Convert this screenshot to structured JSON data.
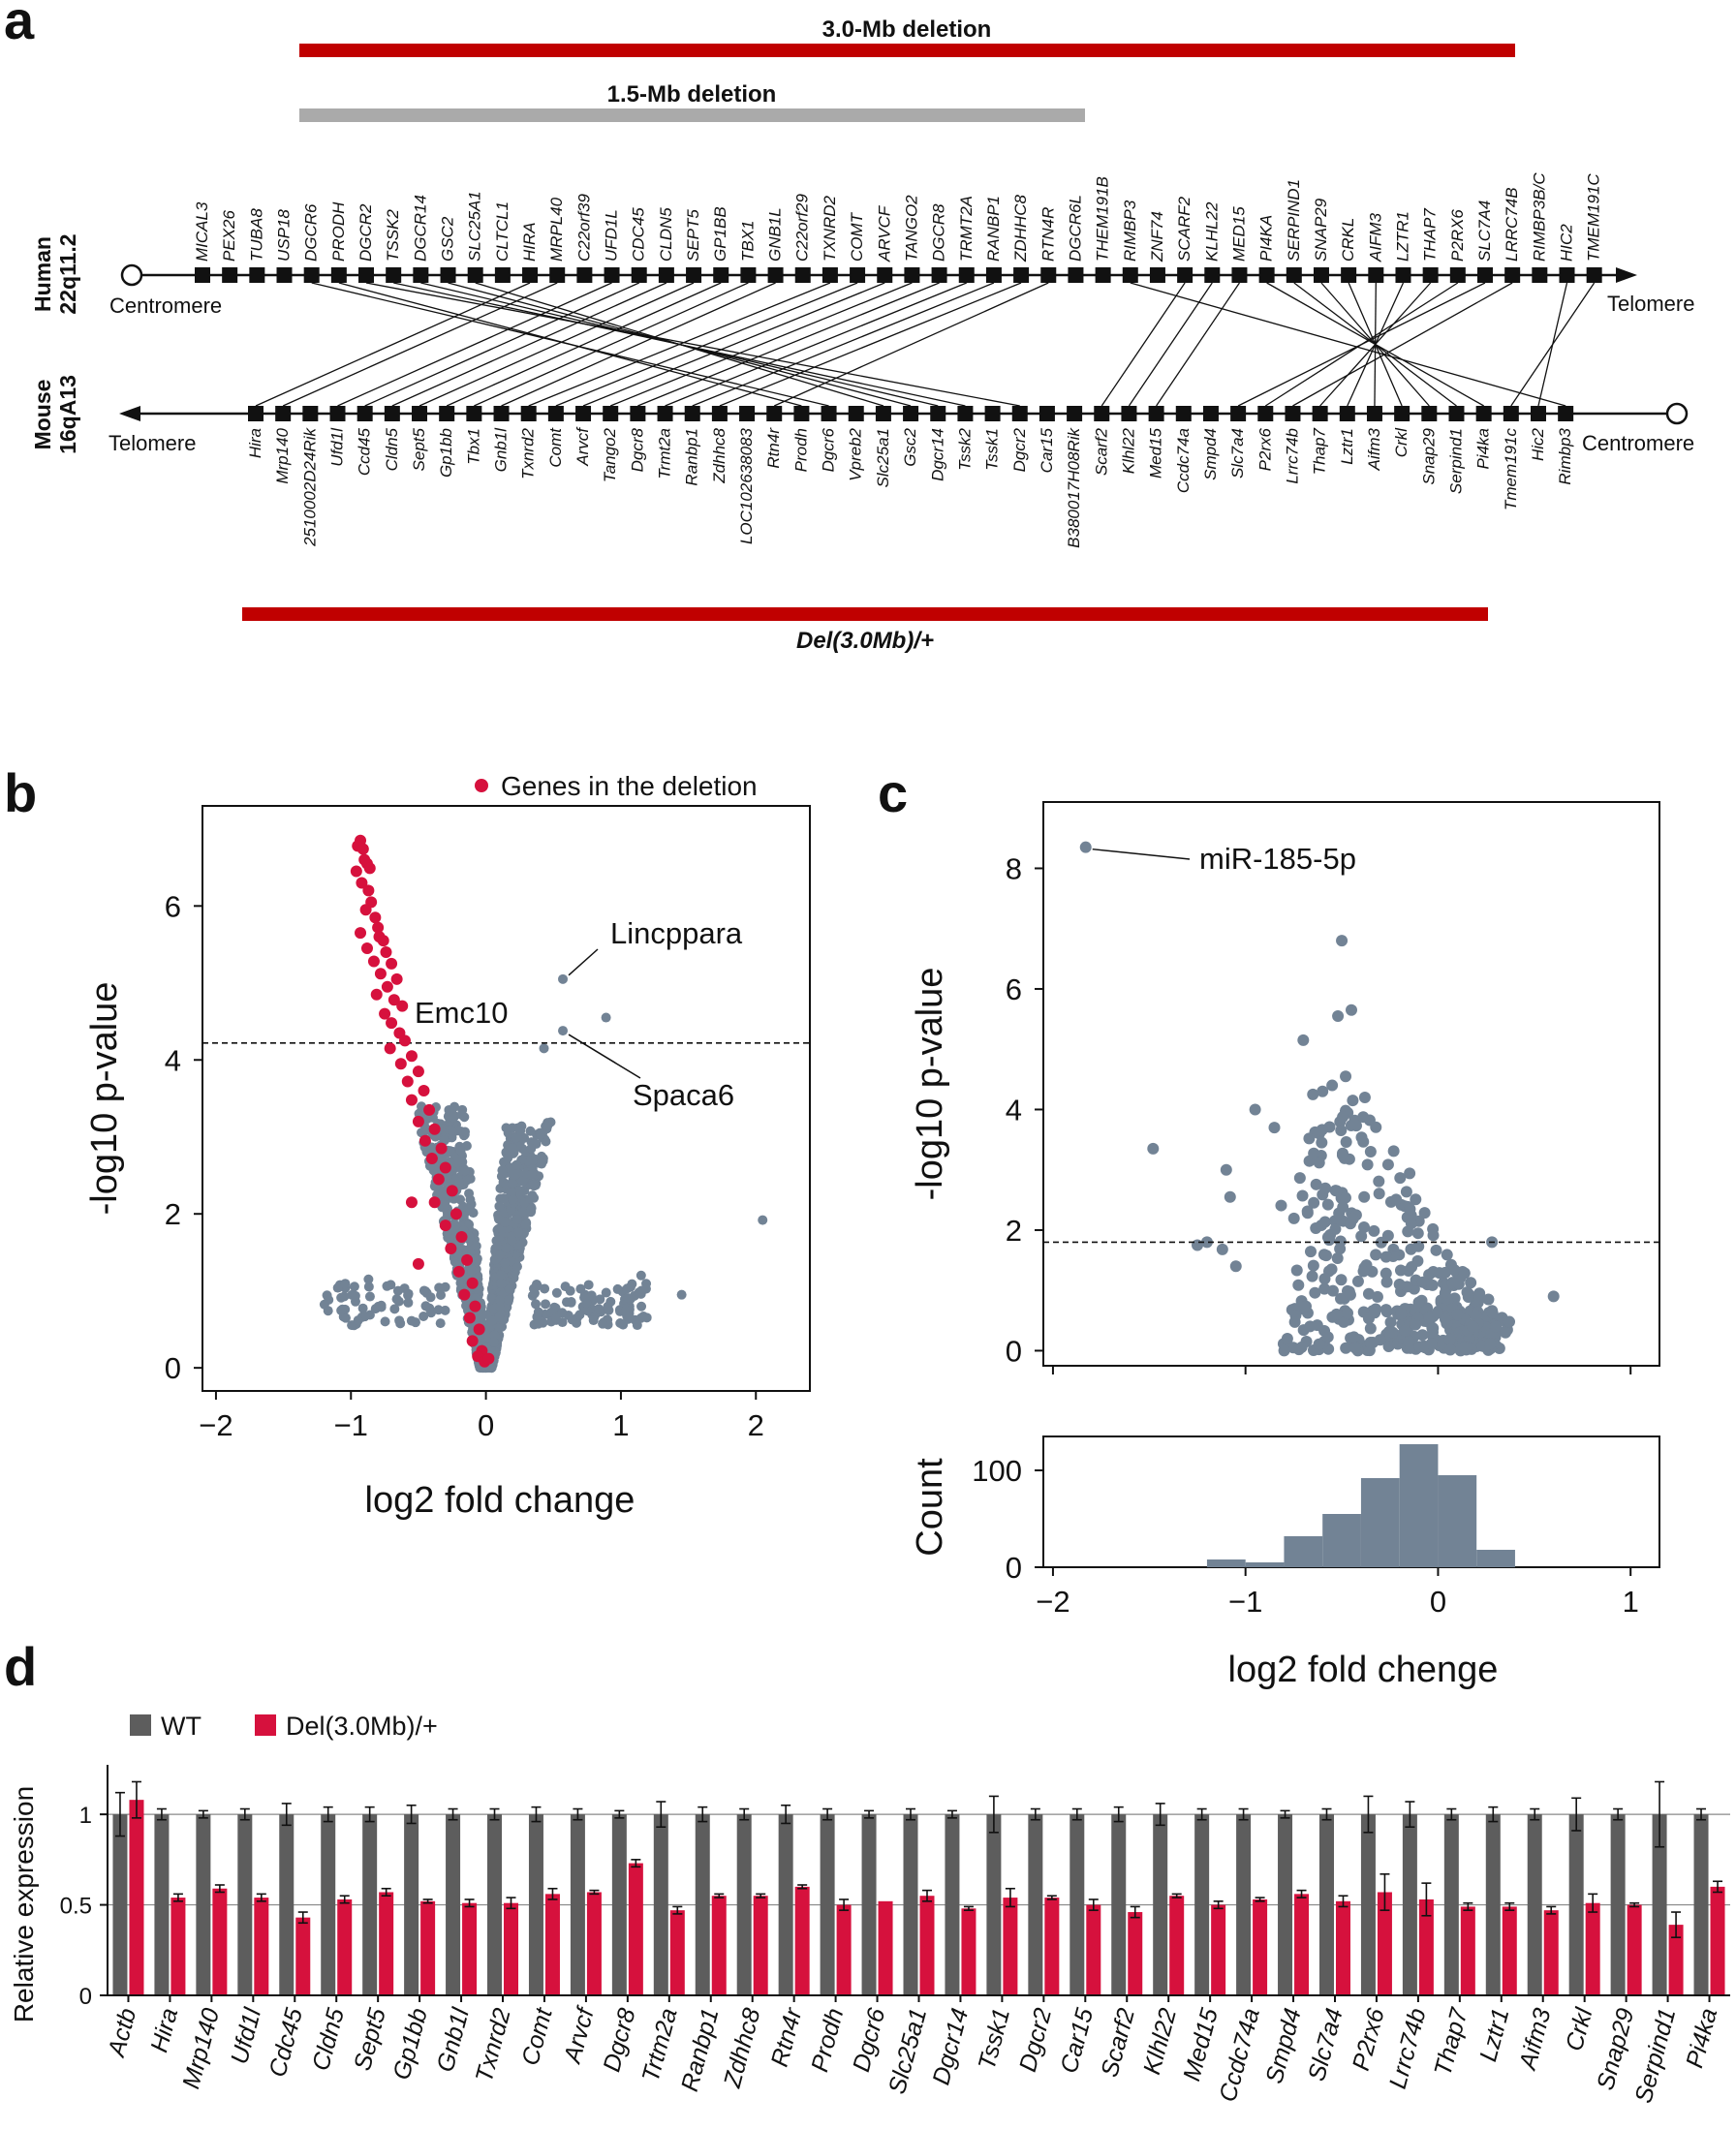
{
  "panels": {
    "a": "a",
    "b": "b",
    "c": "c",
    "d": "d"
  },
  "panel_a": {
    "bar_30": "3.0-Mb deletion",
    "bar_15": "1.5-Mb deletion",
    "bar_del": "Del(3.0Mb)/+",
    "human_label": [
      "Human",
      "22q11.2"
    ],
    "mouse_label": [
      "Mouse",
      "16qA13"
    ],
    "human_left": "Centromere",
    "human_right": "Telomere",
    "mouse_left": "Telomere",
    "mouse_right": "Centromere",
    "colors": {
      "red": "#c00000",
      "gray": "#aaaaaa"
    },
    "human_genes": [
      "MICAL3",
      "PEX26",
      "TUBA8",
      "USP18",
      "DGCR6",
      "PRODH",
      "DGCR2",
      "TSSK2",
      "DGCR14",
      "GSC2",
      "SLC25A1",
      "CLTCL1",
      "HIRA",
      "MRPL40",
      "C22orf39",
      "UFD1L",
      "CDC45",
      "CLDN5",
      "SEPT5",
      "GP1BB",
      "TBX1",
      "GNB1L",
      "C22orf29",
      "TXNRD2",
      "COMT",
      "ARVCF",
      "TANGO2",
      "DGCR8",
      "TRMT2A",
      "RANBP1",
      "ZDHHC8",
      "RTN4R",
      "DGCR6L",
      "THEM191B",
      "RIMBP3",
      "ZNF74",
      "SCARF2",
      "KLHL22",
      "MED15",
      "PI4KA",
      "SERPIND1",
      "SNAP29",
      "CRKL",
      "AIFM3",
      "LZTR1",
      "THAP7",
      "P2RX6",
      "SLC7A4",
      "LRRC74B",
      "RIMBP3B/C",
      "HIC2",
      "TMEM191C"
    ],
    "mouse_genes": [
      "Hira",
      "Mrp140",
      "2510002D24Rik",
      "Ufd1l",
      "Ccd45",
      "Cldn5",
      "Sept5",
      "Gp1bb",
      "Tbx1",
      "Gnb1l",
      "Txnrd2",
      "Comt",
      "Arvcf",
      "Tango2",
      "Dgcr8",
      "Trmt2a",
      "Ranbp1",
      "Zdhhc8",
      "LOC102638083",
      "Rtn4r",
      "Prodh",
      "Dgcr6",
      "Vpreb2",
      "Slc25a1",
      "Gsc2",
      "Dgcr14",
      "Tssk2",
      "Tssk1",
      "Dgcr2",
      "Car15",
      "B380017H08Rik",
      "Scarf2",
      "Klhl22",
      "Med15",
      "Ccdc74a",
      "Smpd4",
      "Slc7a4",
      "P2rx6",
      "Lrrc74b",
      "Thap7",
      "Lztr1",
      "Aifm3",
      "Crkl",
      "Snap29",
      "Serpind1",
      "Pi4ka",
      "Tmem191c",
      "Hic2",
      "Rimbp3"
    ],
    "links": [
      [
        "DGCR6",
        "Dgcr6"
      ],
      [
        "PRODH",
        "Prodh"
      ],
      [
        "DGCR2",
        "Dgcr2"
      ],
      [
        "TSSK2",
        "Tssk2"
      ],
      [
        "DGCR14",
        "Dgcr14"
      ],
      [
        "GSC2",
        "Gsc2"
      ],
      [
        "SLC25A1",
        "Slc25a1"
      ],
      [
        "HIRA",
        "Hira"
      ],
      [
        "MRPL40",
        "Mrp140"
      ],
      [
        "UFD1L",
        "Ufd1l"
      ],
      [
        "CDC45",
        "Ccd45"
      ],
      [
        "CLDN5",
        "Cldn5"
      ],
      [
        "SEPT5",
        "Sept5"
      ],
      [
        "GP1BB",
        "Gp1bb"
      ],
      [
        "TBX1",
        "Tbx1"
      ],
      [
        "GNB1L",
        "Gnb1l"
      ],
      [
        "TXNRD2",
        "Txnrd2"
      ],
      [
        "COMT",
        "Comt"
      ],
      [
        "ARVCF",
        "Arvcf"
      ],
      [
        "TANGO2",
        "Tango2"
      ],
      [
        "DGCR8",
        "Dgcr8"
      ],
      [
        "TRMT2A",
        "Trmt2a"
      ],
      [
        "RANBP1",
        "Ranbp1"
      ],
      [
        "ZDHHC8",
        "Zdhhc8"
      ],
      [
        "RTN4R",
        "Rtn4r"
      ],
      [
        "RIMBP3",
        "Rimbp3"
      ],
      [
        "SCARF2",
        "Scarf2"
      ],
      [
        "KLHL22",
        "Klhl22"
      ],
      [
        "MED15",
        "Med15"
      ],
      [
        "PI4KA",
        "Pi4ka"
      ],
      [
        "SERPIND1",
        "Serpind1"
      ],
      [
        "SNAP29",
        "Snap29"
      ],
      [
        "CRKL",
        "Crkl"
      ],
      [
        "AIFM3",
        "Aifm3"
      ],
      [
        "LZTR1",
        "Lztr1"
      ],
      [
        "THAP7",
        "Thap7"
      ],
      [
        "P2RX6",
        "P2rx6"
      ],
      [
        "SLC7A4",
        "Slc7a4"
      ],
      [
        "LRRC74B",
        "Lrrc74b"
      ],
      [
        "HIC2",
        "Hic2"
      ],
      [
        "TMEM191C",
        "Tmem191c"
      ]
    ]
  },
  "chart_data": [
    {
      "id": "b",
      "type": "scatter",
      "xlabel": "log2 fold change",
      "ylabel": "-log10 p-value",
      "xlim": [
        -2.1,
        2.4
      ],
      "ylim": [
        -0.3,
        7.3
      ],
      "xticks": [
        -2,
        -1,
        0,
        1,
        2
      ],
      "xtick_labels": [
        "−2",
        "−1",
        "0",
        "1",
        "2"
      ],
      "yticks": [
        0,
        2,
        4,
        6
      ],
      "ytick_labels": [
        "0",
        "2",
        "4",
        "6"
      ],
      "threshold": 4.22,
      "legend": "Genes in the deletion",
      "legend_position": "top-right",
      "colors": {
        "background": "#728395",
        "deletion": "#d6113d"
      },
      "annotations": [
        {
          "text": "Lincppara",
          "x": 0.57,
          "y": 5.05
        },
        {
          "text": "Emc10",
          "x": 0.43,
          "y": 4.15
        },
        {
          "text": "Spaca6",
          "x": 0.57,
          "y": 4.38
        }
      ],
      "highlight_points": [
        [
          -0.93,
          6.85
        ],
        [
          -0.95,
          6.78
        ],
        [
          -0.91,
          6.74
        ],
        [
          -0.9,
          6.6
        ],
        [
          -0.88,
          6.55
        ],
        [
          -0.86,
          6.49
        ],
        [
          -0.96,
          6.45
        ],
        [
          -0.92,
          6.3
        ],
        [
          -0.87,
          6.2
        ],
        [
          -0.85,
          6.05
        ],
        [
          -0.89,
          5.95
        ],
        [
          -0.82,
          5.85
        ],
        [
          -0.8,
          5.72
        ],
        [
          -0.93,
          5.65
        ],
        [
          -0.79,
          5.6
        ],
        [
          -0.76,
          5.55
        ],
        [
          -0.88,
          5.45
        ],
        [
          -0.74,
          5.4
        ],
        [
          -0.83,
          5.28
        ],
        [
          -0.7,
          5.25
        ],
        [
          -0.78,
          5.12
        ],
        [
          -0.66,
          5.05
        ],
        [
          -0.73,
          4.95
        ],
        [
          -0.81,
          4.85
        ],
        [
          -0.68,
          4.78
        ],
        [
          -0.62,
          4.7
        ],
        [
          -0.75,
          4.6
        ],
        [
          -0.7,
          4.48
        ],
        [
          -0.64,
          4.35
        ],
        [
          -0.6,
          4.25
        ],
        [
          -0.71,
          4.15
        ],
        [
          -0.55,
          4.05
        ],
        [
          -0.63,
          3.95
        ],
        [
          -0.5,
          3.85
        ],
        [
          -0.58,
          3.72
        ],
        [
          -0.46,
          3.6
        ],
        [
          -0.55,
          3.48
        ],
        [
          -0.42,
          3.35
        ],
        [
          -0.5,
          3.2
        ],
        [
          -0.38,
          3.1
        ],
        [
          -0.45,
          2.95
        ],
        [
          -0.33,
          2.85
        ],
        [
          -0.4,
          2.72
        ],
        [
          -0.3,
          2.6
        ],
        [
          -0.35,
          2.45
        ],
        [
          -0.25,
          2.3
        ],
        [
          -0.38,
          2.15
        ],
        [
          -0.22,
          2.0
        ],
        [
          -0.3,
          1.85
        ],
        [
          -0.18,
          1.7
        ],
        [
          -0.26,
          1.55
        ],
        [
          -0.14,
          1.4
        ],
        [
          -0.2,
          1.25
        ],
        [
          -0.1,
          1.1
        ],
        [
          -0.16,
          0.95
        ],
        [
          -0.08,
          0.8
        ],
        [
          -0.12,
          0.65
        ],
        [
          -0.05,
          0.5
        ],
        [
          -0.1,
          0.35
        ],
        [
          -0.03,
          0.22
        ],
        [
          -0.06,
          0.15
        ],
        [
          -0.01,
          0.08
        ],
        [
          0.02,
          0.12
        ],
        [
          -0.55,
          2.15
        ],
        [
          -0.5,
          1.35
        ]
      ],
      "notable_points": [
        [
          0.57,
          5.05
        ],
        [
          0.89,
          4.55
        ],
        [
          0.43,
          4.15
        ],
        [
          0.57,
          4.38
        ],
        [
          2.05,
          1.92
        ],
        [
          -0.87,
          1.15
        ],
        [
          1.15,
          1.2
        ],
        [
          1.45,
          0.95
        ]
      ]
    },
    {
      "id": "c",
      "type": "scatter",
      "xlabel": "log2 fold chenge",
      "ylabel": "-log10 p-value",
      "xlim": [
        -2.05,
        1.15
      ],
      "ylim": [
        -0.25,
        9.1
      ],
      "xticks": [
        -2,
        -1,
        0,
        1
      ],
      "xtick_labels": [
        "−2",
        "−1",
        "0",
        "1"
      ],
      "yticks": [
        0,
        2,
        4,
        6,
        8
      ],
      "ytick_labels": [
        "0",
        "2",
        "4",
        "6",
        "8"
      ],
      "threshold": 1.8,
      "colors": {
        "points": "#728395"
      },
      "annotation": {
        "text": "miR-185-5p",
        "x": -1.83,
        "y": 8.35
      },
      "points": [
        [
          -1.83,
          8.35
        ],
        [
          -0.5,
          6.8
        ],
        [
          -0.45,
          5.65
        ],
        [
          -0.52,
          5.55
        ],
        [
          -0.7,
          5.15
        ],
        [
          -0.48,
          4.55
        ],
        [
          -0.55,
          4.4
        ],
        [
          -0.6,
          4.3
        ],
        [
          -0.38,
          4.2
        ],
        [
          -0.65,
          4.25
        ],
        [
          -0.95,
          4.0
        ],
        [
          -1.48,
          3.35
        ],
        [
          -1.1,
          3.0
        ],
        [
          -1.08,
          2.55
        ],
        [
          -1.2,
          1.8
        ],
        [
          -1.12,
          1.68
        ],
        [
          -1.05,
          1.4
        ],
        [
          -1.25,
          1.75
        ],
        [
          -0.2,
          1.1
        ],
        [
          -0.1,
          0.8
        ],
        [
          0.1,
          0.6
        ],
        [
          0.3,
          0.4
        ],
        [
          0.35,
          0.3
        ],
        [
          0.6,
          0.9
        ],
        [
          0.28,
          1.8
        ],
        [
          0.18,
          0.4
        ],
        [
          -0.85,
          3.7
        ],
        [
          -0.35,
          3.3
        ]
      ]
    },
    {
      "id": "c-hist",
      "type": "bar",
      "ylabel": "Count",
      "xlim": [
        -2.05,
        1.15
      ],
      "ylim": [
        0,
        135
      ],
      "yticks": [
        0,
        100
      ],
      "ytick_labels": [
        "0",
        "100"
      ],
      "bin_edges": [
        -1.2,
        -1.0,
        -0.8,
        -0.6,
        -0.4,
        -0.2,
        0.0,
        0.2,
        0.4
      ],
      "values": [
        8,
        5,
        32,
        55,
        92,
        127,
        95,
        18
      ],
      "colors": {
        "fill": "#728395"
      }
    },
    {
      "id": "d",
      "type": "bar",
      "ylabel": "Relative expression",
      "ylim": [
        0,
        1.22
      ],
      "yticks": [
        0,
        0.5,
        1
      ],
      "ytick_labels": [
        "0",
        "0.5",
        "1"
      ],
      "legend": [
        "WT",
        "Del(3.0Mb)/+"
      ],
      "legend_position": "top-left",
      "colors": {
        "wt": "#5d5d5d",
        "del": "#d6113d"
      },
      "categories": [
        "Actb",
        "Hira",
        "Mrp140",
        "Ufd1l",
        "Cdc45",
        "Cldn5",
        "Sept5",
        "Gp1bb",
        "Gnb1l",
        "Txnrd2",
        "Comt",
        "Arvcf",
        "Dgcr8",
        "Trtm2a",
        "Ranbp1",
        "Zdhhc8",
        "Rtn4r",
        "Prodh",
        "Dgcr6",
        "Slc25a1",
        "Dgcr14",
        "Tssk1",
        "Dgcr2",
        "Car15",
        "Scarf2",
        "Klhl22",
        "Med15",
        "Ccdc74a",
        "Smpd4",
        "Slc7a4",
        "P2rx6",
        "Lrrc74b",
        "Thap7",
        "Lztr1",
        "Aifm3",
        "Crkl",
        "Snap29",
        "Serpind1",
        "Pi4ka"
      ],
      "series": [
        {
          "name": "WT",
          "values": [
            1,
            1,
            1,
            1,
            1,
            1,
            1,
            1,
            1,
            1,
            1,
            1,
            1,
            1,
            1,
            1,
            1,
            1,
            1,
            1,
            1,
            1,
            1,
            1,
            1,
            1,
            1,
            1,
            1,
            1,
            1,
            1,
            1,
            1,
            1,
            1,
            1,
            1,
            1
          ],
          "errors": [
            0.12,
            0.03,
            0.02,
            0.03,
            0.06,
            0.04,
            0.04,
            0.05,
            0.03,
            0.03,
            0.04,
            0.03,
            0.02,
            0.07,
            0.04,
            0.03,
            0.05,
            0.03,
            0.02,
            0.03,
            0.02,
            0.1,
            0.03,
            0.03,
            0.04,
            0.06,
            0.03,
            0.03,
            0.02,
            0.03,
            0.1,
            0.07,
            0.03,
            0.04,
            0.03,
            0.09,
            0.03,
            0.18,
            0.03
          ]
        },
        {
          "name": "Del(3.0Mb)/+",
          "values": [
            1.08,
            0.54,
            0.59,
            0.54,
            0.43,
            0.53,
            0.57,
            0.52,
            0.51,
            0.51,
            0.56,
            0.57,
            0.73,
            0.47,
            0.55,
            0.55,
            0.6,
            0.5,
            0.52,
            0.55,
            0.48,
            0.54,
            0.54,
            0.5,
            0.46,
            0.55,
            0.5,
            0.53,
            0.56,
            0.52,
            0.57,
            0.53,
            0.49,
            0.49,
            0.47,
            0.51,
            0.5,
            0.39,
            0.6
          ],
          "errors": [
            0.1,
            0.02,
            0.02,
            0.02,
            0.03,
            0.02,
            0.02,
            0.01,
            0.02,
            0.03,
            0.03,
            0.01,
            0.02,
            0.02,
            0.01,
            0.01,
            0.01,
            0.03,
            0.0,
            0.03,
            0.01,
            0.05,
            0.01,
            0.03,
            0.03,
            0.01,
            0.02,
            0.01,
            0.02,
            0.03,
            0.1,
            0.09,
            0.02,
            0.02,
            0.02,
            0.05,
            0.01,
            0.07,
            0.03
          ]
        }
      ]
    }
  ]
}
